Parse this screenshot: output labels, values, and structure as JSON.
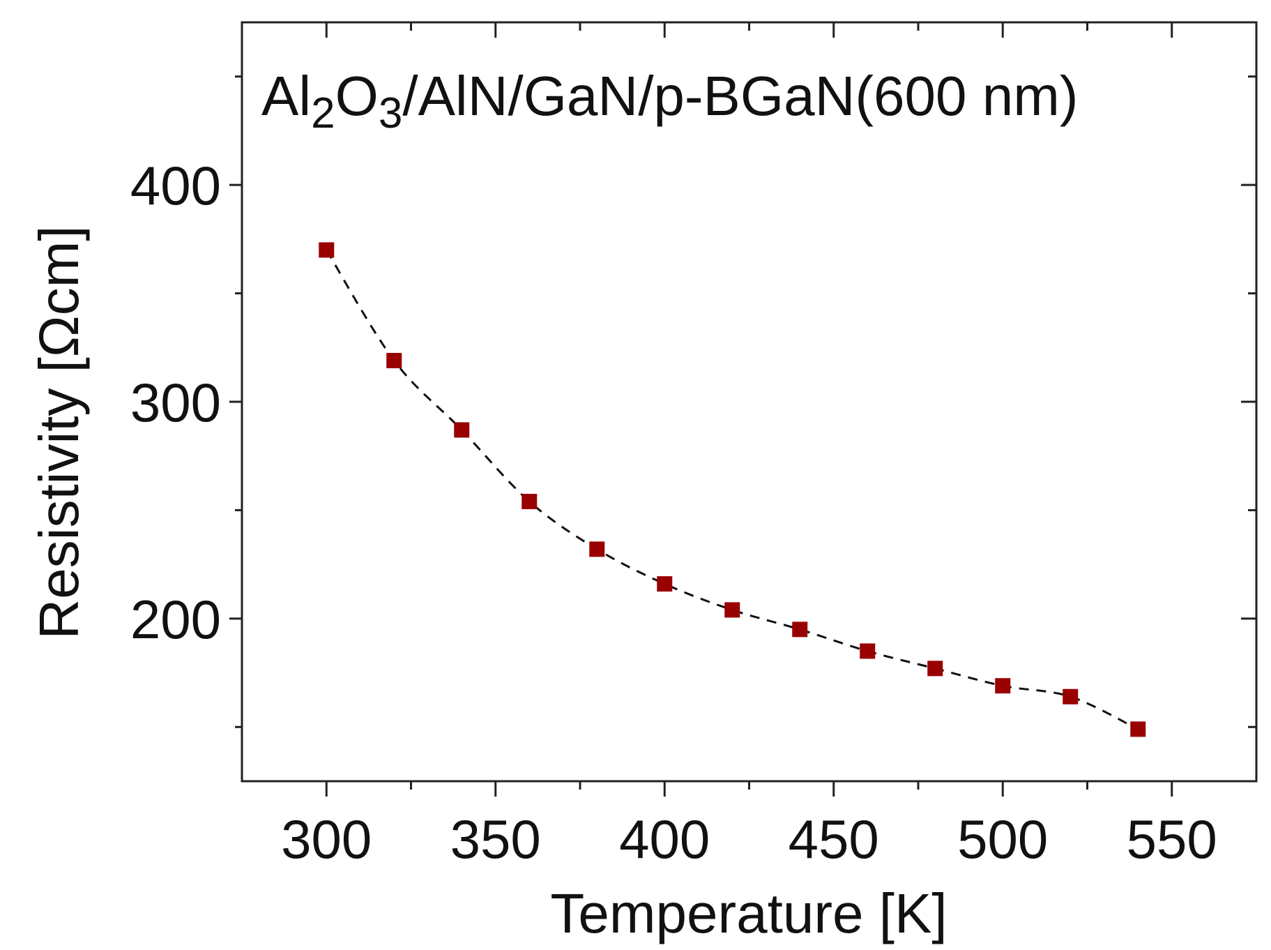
{
  "chart_data": {
    "type": "scatter",
    "annotation": {
      "parts": [
        "Al",
        "2",
        "O",
        "3",
        "/AlN/GaN/p-BGaN(600 nm)"
      ]
    },
    "xlabel": "Temperature [K]",
    "ylabel": "Resistivity [Ωcm]",
    "xlim": [
      275,
      575
    ],
    "ylim": [
      125,
      475
    ],
    "x_ticks": [
      300,
      350,
      400,
      450,
      500,
      550
    ],
    "x_tick_labels": [
      "300",
      "350",
      "400",
      "450",
      "500",
      "550"
    ],
    "x_minor_ticks": [
      325,
      375,
      425,
      475,
      525
    ],
    "y_ticks": [
      200,
      300,
      400
    ],
    "y_tick_labels": [
      "200",
      "300",
      "400"
    ],
    "y_minor_ticks": [
      150,
      250,
      350,
      450
    ],
    "grid": false,
    "series": [
      {
        "marker": "square",
        "color": "#990000",
        "points": [
          {
            "x": 300,
            "y": 370
          },
          {
            "x": 320,
            "y": 319
          },
          {
            "x": 340,
            "y": 287
          },
          {
            "x": 360,
            "y": 254
          },
          {
            "x": 380,
            "y": 232
          },
          {
            "x": 400,
            "y": 216
          },
          {
            "x": 420,
            "y": 204
          },
          {
            "x": 440,
            "y": 195
          },
          {
            "x": 460,
            "y": 185
          },
          {
            "x": 480,
            "y": 177
          },
          {
            "x": 500,
            "y": 169
          },
          {
            "x": 520,
            "y": 164
          },
          {
            "x": 540,
            "y": 149
          }
        ]
      }
    ],
    "fit_line": {
      "style": "dashed",
      "color": "#111111"
    }
  }
}
